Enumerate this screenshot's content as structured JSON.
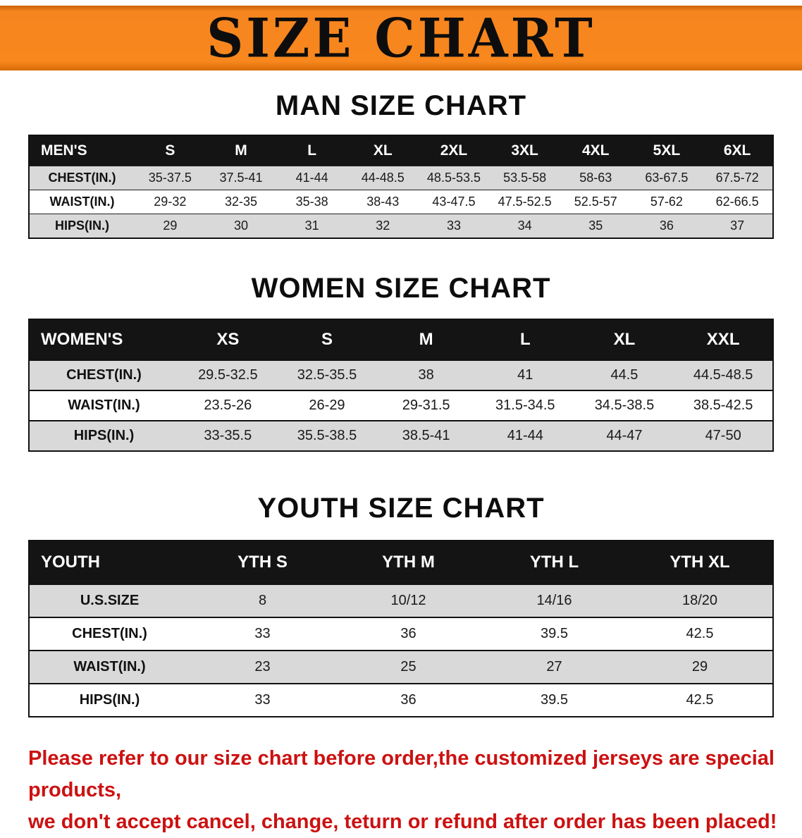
{
  "banner": {
    "title": "SIZE CHART",
    "background_color": "#f6851f"
  },
  "colors": {
    "banner_orange": "#f6851f",
    "table_header_black": "#141414",
    "row_gray": "#d9d9d9",
    "disclaimer_red": "#cc1111"
  },
  "sections": [
    {
      "heading": "MAN SIZE CHART",
      "table": {
        "header": [
          "MEN'S",
          "S",
          "M",
          "L",
          "XL",
          "2XL",
          "3XL",
          "4XL",
          "5XL",
          "6XL"
        ],
        "rows": [
          [
            "CHEST(IN.)",
            "35-37.5",
            "37.5-41",
            "41-44",
            "44-48.5",
            "48.5-53.5",
            "53.5-58",
            "58-63",
            "63-67.5",
            "67.5-72"
          ],
          [
            "WAIST(IN.)",
            "29-32",
            "32-35",
            "35-38",
            "38-43",
            "43-47.5",
            "47.5-52.5",
            "52.5-57",
            "57-62",
            "62-66.5"
          ],
          [
            "HIPS(IN.)",
            "29",
            "30",
            "31",
            "32",
            "33",
            "34",
            "35",
            "36",
            "37"
          ]
        ]
      }
    },
    {
      "heading": "WOMEN SIZE CHART",
      "table": {
        "header": [
          "WOMEN'S",
          "XS",
          "S",
          "M",
          "L",
          "XL",
          "XXL"
        ],
        "rows": [
          [
            "CHEST(IN.)",
            "29.5-32.5",
            "32.5-35.5",
            "38",
            "41",
            "44.5",
            "44.5-48.5"
          ],
          [
            "WAIST(IN.)",
            "23.5-26",
            "26-29",
            "29-31.5",
            "31.5-34.5",
            "34.5-38.5",
            "38.5-42.5"
          ],
          [
            "HIPS(IN.)",
            "33-35.5",
            "35.5-38.5",
            "38.5-41",
            "41-44",
            "44-47",
            "47-50"
          ]
        ]
      }
    },
    {
      "heading": "YOUTH SIZE CHART",
      "table": {
        "header": [
          "YOUTH",
          "YTH S",
          "YTH M",
          "YTH L",
          "YTH XL"
        ],
        "rows": [
          [
            "U.S.SIZE",
            "8",
            "10/12",
            "14/16",
            "18/20"
          ],
          [
            "CHEST(IN.)",
            "33",
            "36",
            "39.5",
            "42.5"
          ],
          [
            "WAIST(IN.)",
            "23",
            "25",
            "27",
            "29"
          ],
          [
            "HIPS(IN.)",
            "33",
            "36",
            "39.5",
            "42.5"
          ]
        ]
      }
    }
  ],
  "footnote": {
    "lines": [
      "Please refer to our size chart before order,the customized jerseys are special products,",
      "we don't accept cancel, change, teturn or refund after order has been placed!"
    ]
  }
}
